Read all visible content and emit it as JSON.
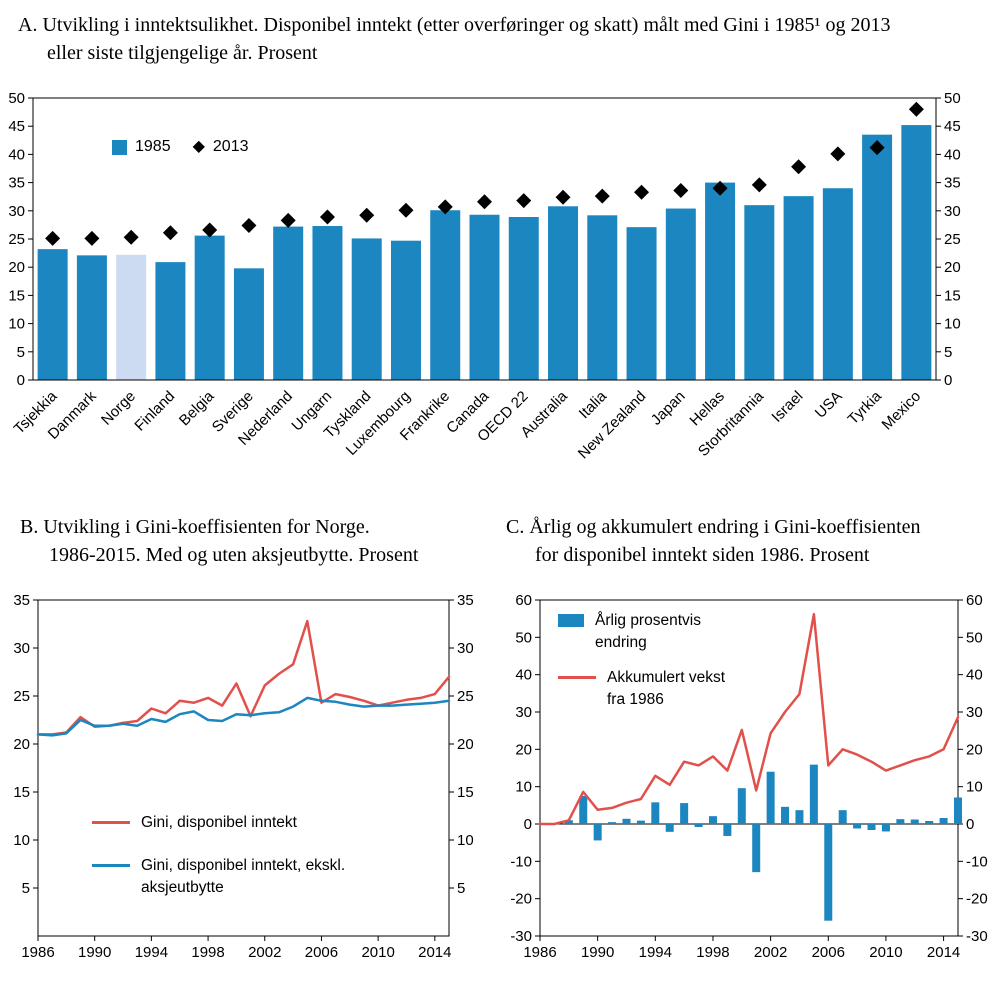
{
  "icons": {
    "diamond": "◆"
  },
  "colors": {
    "bar_blue": "#1b86c0",
    "norway_light": "#ccdaf2",
    "red": "#e2504c",
    "axis_black": "#000000"
  },
  "chart_data": [
    {
      "id": "A",
      "type": "bar",
      "title": "A. Utvikling i inntektsulikhet. Disponibel inntekt (etter overføringer og skatt) målt med Gini i 1985¹ og 2013 eller siste tilgjengelige år. Prosent",
      "title_lines": [
        "A. Utvikling i inntektsulikhet. Disponibel inntekt (etter overføringer og skatt) målt med Gini i 1985¹ og 2013",
        "eller siste tilgjengelige år. Prosent"
      ],
      "categories": [
        "Tsjekkia",
        "Danmark",
        "Norge",
        "Finland",
        "Belgia",
        "Sverige",
        "Nederland",
        "Ungarn",
        "Tyskland",
        "Luxembourg",
        "Frankrike",
        "Canada",
        "OECD 22",
        "Australia",
        "Italia",
        "New Zealand",
        "Japan",
        "Hellas",
        "Storbritannia",
        "Israel",
        "USA",
        "Tyrkia",
        "Mexico"
      ],
      "series": [
        {
          "name": "1985",
          "type": "bar",
          "values": [
            23.2,
            22.1,
            22.2,
            20.9,
            25.6,
            19.8,
            27.2,
            27.3,
            25.1,
            24.7,
            30.1,
            29.3,
            28.9,
            30.8,
            29.2,
            27.1,
            30.4,
            35.0,
            31.0,
            32.6,
            34.0,
            43.5,
            45.2
          ]
        },
        {
          "name": "2013",
          "type": "scatter-diamond",
          "values": [
            25.1,
            25.1,
            25.3,
            26.1,
            26.6,
            27.4,
            28.3,
            28.9,
            29.2,
            30.1,
            30.7,
            31.6,
            31.8,
            32.4,
            32.6,
            33.3,
            33.6,
            34.0,
            34.6,
            37.8,
            40.1,
            41.2,
            48.0
          ]
        }
      ],
      "highlight_category": "Norge",
      "ylim": [
        0,
        50
      ],
      "yticks": [
        0,
        5,
        10,
        15,
        20,
        25,
        30,
        35,
        40,
        45,
        50
      ],
      "grid": false,
      "legend_position": "inside-top-left"
    },
    {
      "id": "B",
      "type": "line",
      "title": "B. Utvikling i Gini-koeffisienten for Norge. 1986-2015. Med og uten aksjeutbytte. Prosent",
      "title_lines": [
        "B. Utvikling i Gini-koeffisienten for Norge.",
        "1986-2015. Med og uten aksjeutbytte. Prosent"
      ],
      "x_start": 1986,
      "x_end": 2015,
      "xticks": [
        1986,
        1990,
        1994,
        1998,
        2002,
        2006,
        2010,
        2014
      ],
      "ylim": [
        0,
        35
      ],
      "yticks": [
        5,
        10,
        15,
        20,
        25,
        30,
        35
      ],
      "grid": false,
      "legend_position": "inside-bottom-left",
      "series": [
        {
          "name": "Gini, disponibel inntekt",
          "color": "red",
          "values": [
            21.0,
            21.0,
            21.2,
            22.8,
            21.8,
            21.9,
            22.2,
            22.4,
            23.7,
            23.2,
            24.5,
            24.3,
            24.8,
            24.0,
            26.3,
            22.9,
            26.1,
            27.3,
            28.3,
            32.8,
            24.3,
            25.2,
            24.9,
            24.5,
            24.0,
            24.3,
            24.6,
            24.8,
            25.2,
            27.0
          ]
        },
        {
          "name": "Gini, disponibel inntekt, ekskl. aksjeutbytte",
          "color": "blue",
          "values": [
            21.0,
            20.9,
            21.1,
            22.5,
            21.9,
            21.9,
            22.1,
            21.9,
            22.6,
            22.3,
            23.1,
            23.4,
            22.5,
            22.4,
            23.1,
            23.0,
            23.2,
            23.3,
            23.9,
            24.8,
            24.5,
            24.4,
            24.1,
            23.9,
            24.0,
            24.0,
            24.1,
            24.2,
            24.3,
            24.5
          ]
        }
      ]
    },
    {
      "id": "C",
      "type": "combo",
      "title": "C. Årlig og akkumulert endring i Gini-koeffisienten for disponibel inntekt siden 1986. Prosent",
      "title_lines": [
        "C. Årlig og akkumulert endring i Gini-koeffisienten",
        "for disponibel inntekt siden 1986. Prosent"
      ],
      "x_start": 1986,
      "x_end": 2015,
      "xticks": [
        1986,
        1990,
        1994,
        1998,
        2002,
        2006,
        2010,
        2014
      ],
      "ylim": [
        -30,
        60
      ],
      "yticks": [
        -30,
        -20,
        -10,
        0,
        10,
        20,
        30,
        40,
        50,
        60
      ],
      "grid": false,
      "legend_position": "inside-top-left",
      "bar_series": {
        "name": "Årlig prosentvis endring",
        "values": [
          0,
          0,
          1.0,
          7.5,
          -4.4,
          0.5,
          1.4,
          0.9,
          5.8,
          -2.1,
          5.6,
          -0.8,
          2.1,
          -3.2,
          9.6,
          -12.9,
          14.0,
          4.6,
          3.7,
          15.9,
          -25.9,
          3.7,
          -1.2,
          -1.6,
          -2.0,
          1.3,
          1.2,
          0.8,
          1.6,
          7.1
        ]
      },
      "line_series": {
        "name": "Akkumulert vekst fra 1986",
        "values": [
          0,
          0,
          1.0,
          8.6,
          3.8,
          4.3,
          5.7,
          6.7,
          12.9,
          10.5,
          16.7,
          15.7,
          18.1,
          14.3,
          25.2,
          9.0,
          24.3,
          30.0,
          34.8,
          56.2,
          15.7,
          20.0,
          18.6,
          16.7,
          14.3,
          15.7,
          17.1,
          18.1,
          20.0,
          28.6
        ]
      }
    }
  ]
}
